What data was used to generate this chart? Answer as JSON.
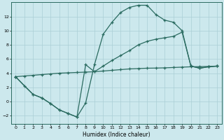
{
  "xlabel": "Humidex (Indice chaleur)",
  "bg_color": "#cce8ed",
  "line_color": "#2a6b60",
  "grid_color": "#aacfd6",
  "xlim": [
    -0.5,
    23.5
  ],
  "ylim": [
    -3.2,
    14.0
  ],
  "xticks": [
    0,
    1,
    2,
    3,
    4,
    5,
    6,
    7,
    8,
    9,
    10,
    11,
    12,
    13,
    14,
    15,
    16,
    17,
    18,
    19,
    20,
    21,
    22,
    23
  ],
  "yticks": [
    -2,
    0,
    2,
    4,
    6,
    8,
    10,
    12
  ],
  "line1_x": [
    0,
    1,
    2,
    3,
    4,
    5,
    6,
    7,
    8,
    9,
    10,
    11,
    12,
    13,
    14,
    15,
    16,
    17,
    18,
    19,
    20,
    21,
    22,
    23
  ],
  "line1_y": [
    3.5,
    2.2,
    1.0,
    0.5,
    -0.3,
    -1.2,
    -1.7,
    -2.2,
    -0.2,
    5.2,
    9.5,
    11.2,
    12.6,
    13.3,
    13.6,
    13.6,
    12.3,
    11.5,
    11.2,
    10.0,
    5.0,
    4.7,
    4.9,
    5.0
  ],
  "line2_x": [
    0,
    2,
    3,
    4,
    5,
    6,
    7,
    8,
    9,
    10,
    11,
    12,
    13,
    14,
    15,
    16,
    17,
    18,
    19,
    20,
    21,
    22,
    23
  ],
  "line2_y": [
    3.5,
    1.0,
    0.5,
    -0.3,
    -1.2,
    -1.7,
    -2.2,
    5.2,
    4.2,
    5.0,
    5.8,
    6.5,
    7.2,
    8.0,
    8.5,
    8.8,
    9.0,
    9.2,
    9.8,
    5.0,
    4.7,
    4.9,
    5.0
  ],
  "line3_x": [
    0,
    1,
    2,
    3,
    4,
    5,
    6,
    7,
    8,
    9,
    10,
    11,
    12,
    13,
    14,
    15,
    16,
    17,
    18,
    19,
    20,
    21,
    22,
    23
  ],
  "line3_y": [
    3.5,
    3.6,
    3.7,
    3.8,
    3.9,
    4.0,
    4.05,
    4.1,
    4.15,
    4.2,
    4.3,
    4.4,
    4.5,
    4.6,
    4.65,
    4.7,
    4.72,
    4.75,
    4.8,
    4.85,
    4.9,
    4.92,
    4.95,
    5.0
  ]
}
